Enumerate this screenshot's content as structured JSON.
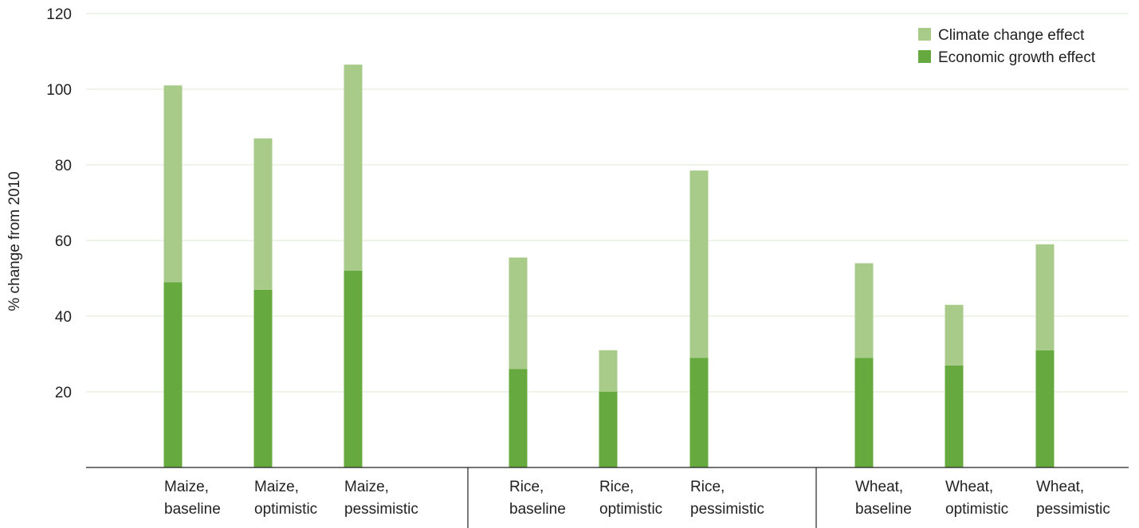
{
  "chart_data": {
    "type": "bar",
    "stacked": true,
    "categories": [
      [
        "Maize,",
        "baseline"
      ],
      [
        "Maize,",
        "optimistic"
      ],
      [
        "Maize,",
        "pessimistic"
      ],
      [
        "Rice,",
        "baseline"
      ],
      [
        "Rice,",
        "optimistic"
      ],
      [
        "Rice,",
        "pessimistic"
      ],
      [
        "Wheat,",
        "baseline"
      ],
      [
        "Wheat,",
        "optimistic"
      ],
      [
        "Wheat,",
        "pessimistic"
      ]
    ],
    "groups": [
      {
        "name": "Maize",
        "categories": [
          0,
          1,
          2
        ]
      },
      {
        "name": "Rice",
        "categories": [
          3,
          4,
          5
        ]
      },
      {
        "name": "Wheat",
        "categories": [
          6,
          7,
          8
        ]
      }
    ],
    "series": [
      {
        "name": "Economic growth effect",
        "color": "#66aa3f",
        "values": [
          49,
          47,
          52,
          26,
          20,
          29,
          29,
          27,
          31
        ]
      },
      {
        "name": "Climate change effect",
        "color": "#a9cb8a",
        "values": [
          52,
          40,
          54.5,
          29.5,
          11,
          49.5,
          25,
          16,
          28
        ]
      }
    ],
    "legend": [
      "Climate change effect",
      "Economic growth effect"
    ],
    "legend_position": "top-right",
    "xlabel": "",
    "ylabel": "% change from 2010",
    "ylim": [
      0,
      120
    ],
    "yticks": [
      20,
      40,
      60,
      80,
      100,
      120
    ],
    "grid": true
  }
}
